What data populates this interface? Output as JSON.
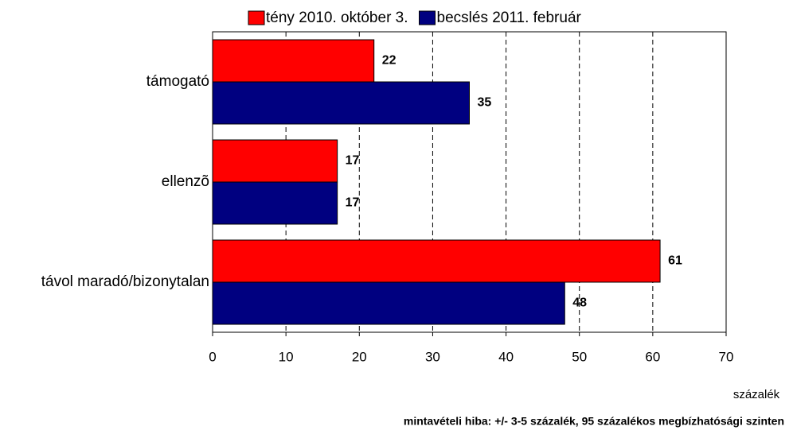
{
  "chart_data": {
    "type": "bar",
    "orientation": "horizontal",
    "categories": [
      "támogató",
      "ellenzõ",
      "távol maradó/bizonytalan"
    ],
    "series": [
      {
        "name": "tény 2010. október 3.",
        "color": "#ff0000",
        "values": [
          22,
          17,
          61
        ]
      },
      {
        "name": "becslés 2011. február",
        "color": "#000080",
        "values": [
          35,
          17,
          48
        ]
      }
    ],
    "xlim": [
      0,
      70
    ],
    "xticks": [
      0,
      10,
      20,
      30,
      40,
      50,
      60,
      70
    ],
    "xlabel": "százalék",
    "grid": true,
    "legend": "top",
    "note": "mintavételi hiba: +/- 3-5 százalék, 95 százalékos megbízhatósági szinten"
  }
}
